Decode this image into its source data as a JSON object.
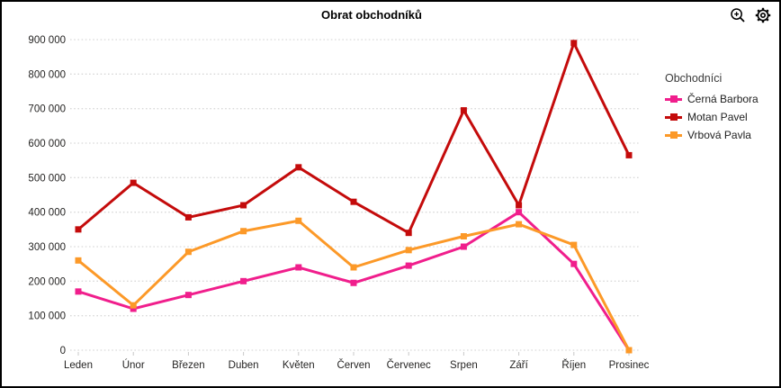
{
  "header": {
    "title": "Obrat obchodníků",
    "icons": [
      {
        "name": "zoom-in-icon"
      },
      {
        "name": "settings-gear-icon"
      }
    ]
  },
  "legend": {
    "title": "Obchodníci"
  },
  "chart_data": {
    "type": "line",
    "title": "Obrat obchodníků",
    "categories": [
      "Leden",
      "Únor",
      "Březen",
      "Duben",
      "Květen",
      "Červen",
      "Červenec",
      "Srpen",
      "Září",
      "Říjen",
      "Prosinec"
    ],
    "series": [
      {
        "name": "Černá Barbora",
        "color": "#F01E8C",
        "values": [
          170000,
          120000,
          160000,
          200000,
          240000,
          195000,
          245000,
          300000,
          400000,
          250000,
          0
        ]
      },
      {
        "name": "Motan Pavel",
        "color": "#C40B0B",
        "values": [
          350000,
          485000,
          385000,
          420000,
          530000,
          430000,
          340000,
          695000,
          420000,
          890000,
          565000
        ]
      },
      {
        "name": "Vrbová Pavla",
        "color": "#FC9928",
        "values": [
          260000,
          130000,
          285000,
          345000,
          375000,
          240000,
          290000,
          330000,
          365000,
          305000,
          0
        ]
      }
    ],
    "xlabel": "",
    "ylabel": "",
    "ylim": [
      0,
      900000
    ],
    "ytick_step": 100000,
    "ytick_labels": [
      "0",
      "100 000",
      "200 000",
      "300 000",
      "400 000",
      "500 000",
      "600 000",
      "700 000",
      "800 000",
      "900 000"
    ],
    "grid": "horizontal-dotted",
    "grid_color": "#d9d9d9",
    "axis_label_color": "#252423",
    "tick_mark_color": "#c8c8c8",
    "legend_position": "right",
    "legend_title": "Obchodníci",
    "marker_shape": "square"
  }
}
